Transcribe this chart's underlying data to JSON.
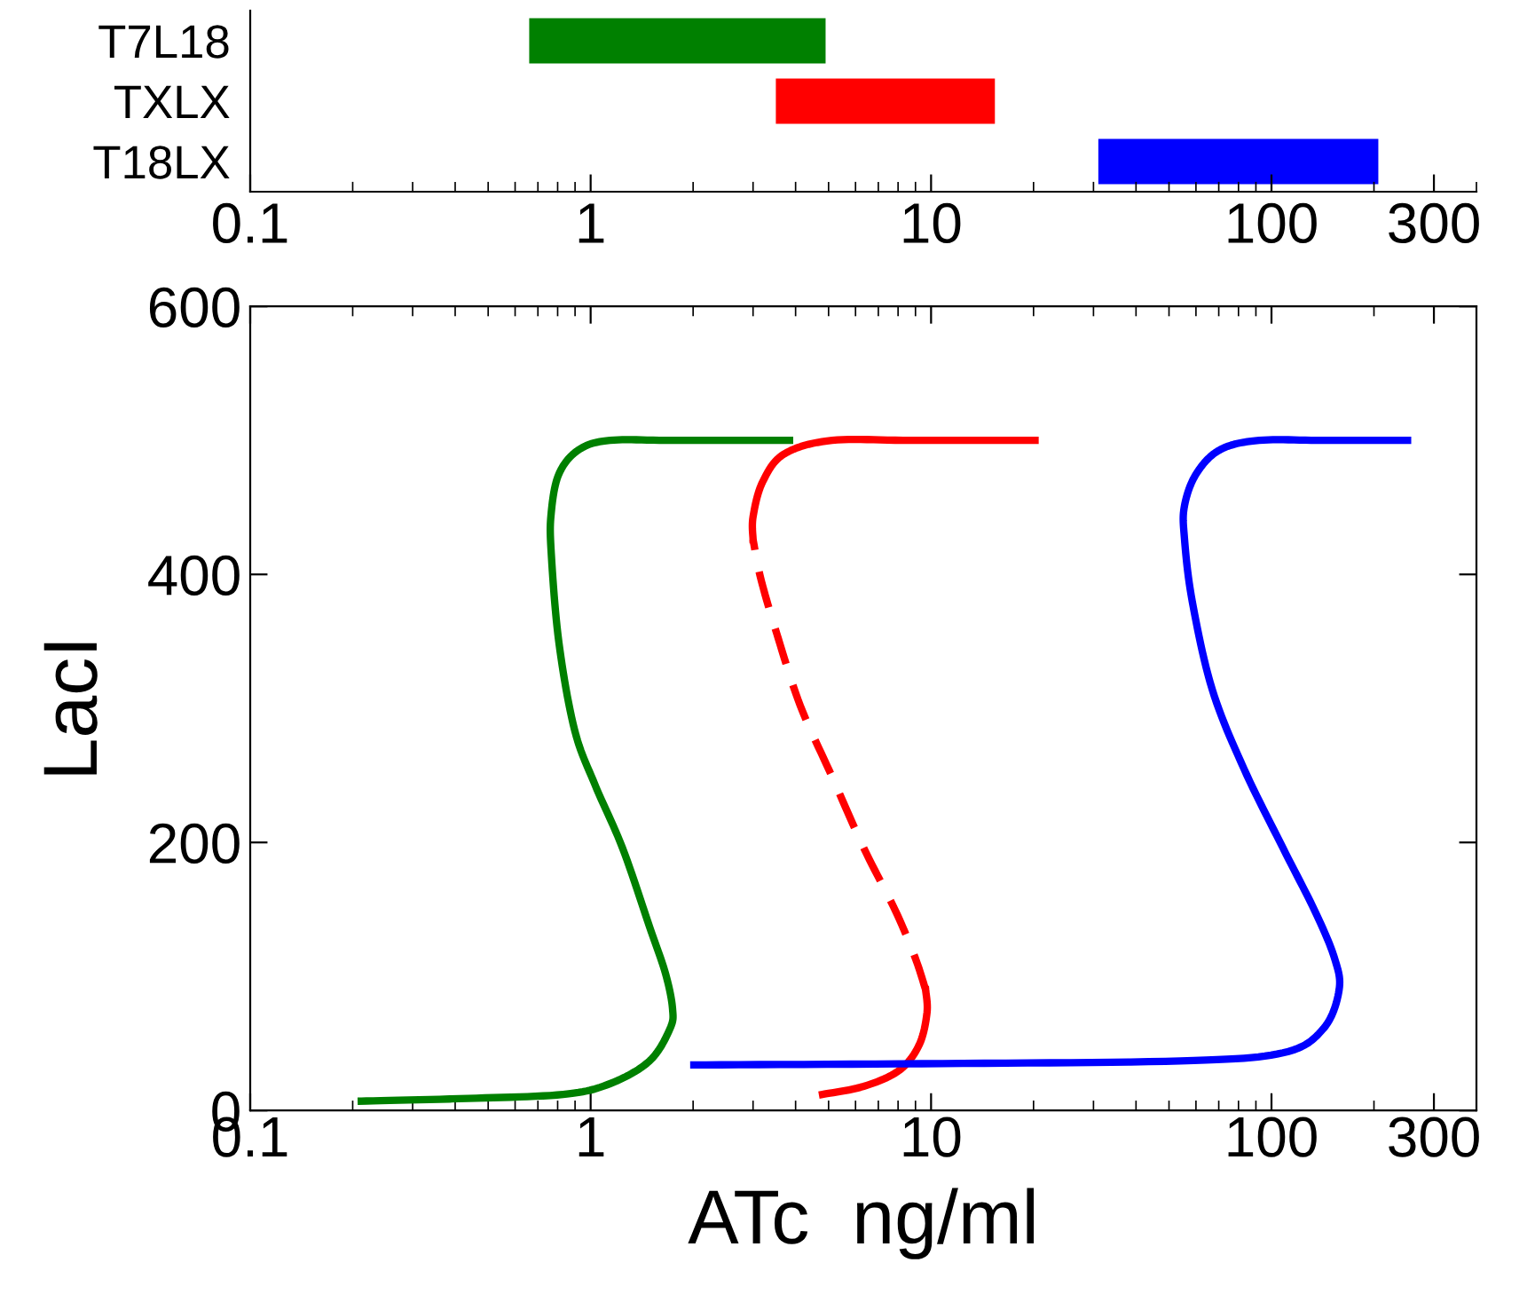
{
  "chart_data": [
    {
      "type": "bar",
      "orientation": "horizontal",
      "log": "x",
      "categories": [
        "T7L18",
        "TXLX",
        "T18LX"
      ],
      "base": [
        0.66,
        3.5,
        31
      ],
      "values": [
        4.24,
        11.9,
        175
      ],
      "colors": [
        "#008000",
        "#ff0000",
        "#0000ff"
      ],
      "xlim": [
        0.1,
        400
      ],
      "xticks": [
        0.1,
        1,
        10,
        100,
        300
      ]
    },
    {
      "type": "line",
      "log": "x",
      "xlabel": "ATc  ng/ml",
      "ylabel": "LacI",
      "xlim": [
        0.1,
        400
      ],
      "ylim": [
        0,
        600
      ],
      "xticks": [
        0.1,
        1,
        10,
        100,
        300
      ],
      "yticks": [
        0,
        200,
        400,
        600
      ],
      "series": [
        {
          "color": "#008000",
          "line_style": "solid",
          "x": [
            0.212,
            0.436,
            0.83,
            1.14,
            1.49,
            1.71,
            1.74,
            1.66,
            1.49,
            1.24,
            1.03,
            0.897,
            0.807,
            0.766,
            0.766,
            0.807,
            0.923,
            1.14,
            1.75,
            3.84
          ],
          "values": [
            7,
            9,
            12,
            20,
            37,
            61,
            76,
            102,
            137,
            196,
            243,
            284,
            349,
            416,
            446,
            475,
            493,
            500,
            500,
            500
          ]
        },
        {
          "color": "#ff0000",
          "line_style": "solid",
          "x": [
            4.8,
            6.34,
            8.07,
            9.23,
            9.73,
            9.64
          ],
          "values": [
            12,
            18,
            30,
            49,
            73,
            90
          ]
        },
        {
          "color": "#ff0000",
          "line_style": "dashed",
          "x": [
            9.64,
            8.98,
            7.86,
            6.34,
            5.12,
            4.13,
            3.52,
            3.16,
            3.0
          ],
          "values": [
            90,
            114,
            149,
            196,
            249,
            302,
            356,
            397,
            426
          ]
        },
        {
          "color": "#ff0000",
          "line_style": "solid",
          "x": [
            3.0,
            3.0,
            3.2,
            3.71,
            5.12,
            8.75,
            20.2
          ],
          "values": [
            426,
            443,
            469,
            490,
            500,
            500,
            500
          ]
        },
        {
          "color": "#0000ff",
          "line_style": "solid",
          "x": [
            2.01,
            10.8,
            54,
            108,
            142,
            158,
            153,
            134,
            108,
            83,
            67,
            58.5,
            55.5,
            55.5,
            60.1,
            70.6,
            92,
            142,
            251
          ],
          "values": [
            34,
            35,
            37,
            43,
            61,
            90,
            114,
            149,
            196,
            255,
            314,
            380,
            427,
            451,
            475,
            493,
            500,
            500,
            500
          ]
        }
      ]
    }
  ]
}
